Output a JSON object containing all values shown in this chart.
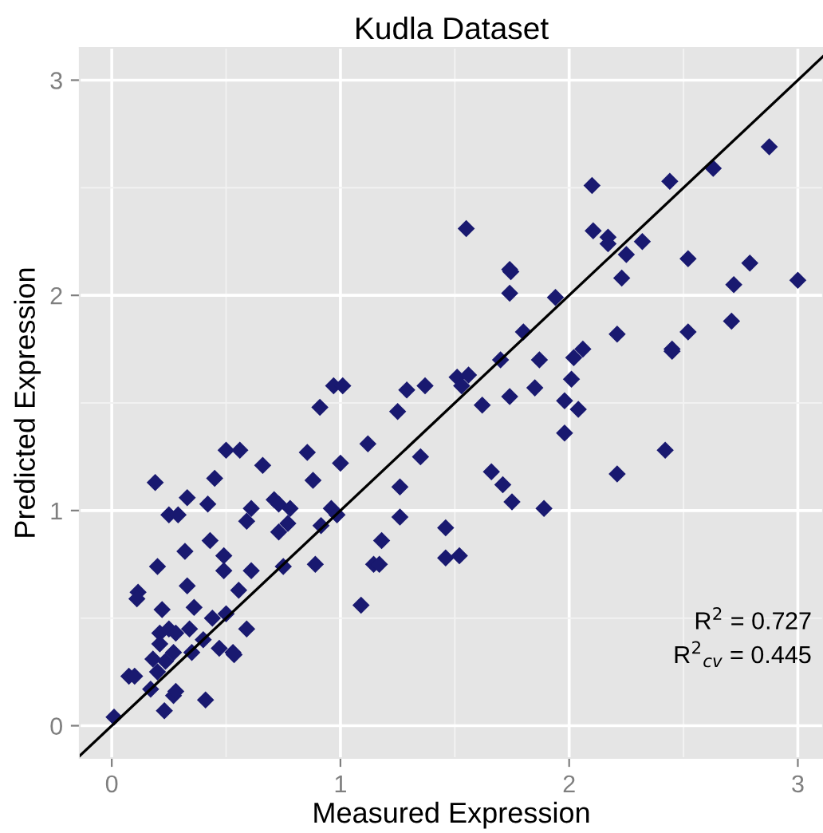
{
  "chart_data": {
    "type": "scatter",
    "title": "Kudla Dataset",
    "xlabel": "Measured Expression",
    "ylabel": "Predicted Expression",
    "xlim": [
      -0.14,
      3.11
    ],
    "ylim": [
      -0.15,
      3.15
    ],
    "xticks": [
      0,
      1,
      2,
      3
    ],
    "yticks": [
      0,
      1,
      2,
      3
    ],
    "grid": true,
    "annotations": [
      "R$^{2}$ = 0.727",
      "R$^{2}$$_{cv}$ = 0.445"
    ],
    "series": [
      {
        "marker": "diamond",
        "color": "#191970",
        "x": [
          0.91,
          0.5,
          0.56,
          0.855,
          1.0,
          0.66,
          0.45,
          0.19,
          0.88,
          0.33,
          0.42,
          0.71,
          0.73,
          0.78,
          0.61,
          0.25,
          0.29,
          0.59,
          0.77,
          0.73,
          0.96,
          0.985,
          0.915,
          0.43,
          0.32,
          0.49,
          0.2,
          0.49,
          0.61,
          0.75,
          0.89,
          0.115,
          0.11,
          0.33,
          0.555,
          0.22,
          0.36,
          0.44,
          0.5,
          0.59,
          0.21,
          0.25,
          0.28,
          0.34,
          0.21,
          0.4,
          0.18,
          0.235,
          0.27,
          0.35,
          0.47,
          0.53,
          0.535,
          0.2,
          0.075,
          0.1,
          0.17,
          0.27,
          0.28,
          0.41,
          0.23,
          0.01,
          1.74,
          1.94,
          1.8,
          2.21,
          2.06,
          2.02,
          1.87,
          1.7,
          0.97,
          1.01,
          1.51,
          1.56,
          1.53,
          1.29,
          1.37,
          1.85,
          2.01,
          1.74,
          1.62,
          1.98,
          2.04,
          1.25,
          1.98,
          1.12,
          1.35,
          2.21,
          1.66,
          1.71,
          1.26,
          1.75,
          1.89,
          1.26,
          1.46,
          1.18,
          1.145,
          1.17,
          1.46,
          1.52,
          1.09,
          2.1,
          2.44,
          2.875,
          2.63,
          1.55,
          2.105,
          2.17,
          2.17,
          2.32,
          2.25,
          2.52,
          2.79,
          1.74,
          1.745,
          2.23,
          2.72,
          3.0,
          2.71,
          2.52,
          2.45,
          2.45,
          2.42
        ],
        "values": [
          1.48,
          1.28,
          1.28,
          1.27,
          1.22,
          1.21,
          1.15,
          1.13,
          1.14,
          1.06,
          1.03,
          1.05,
          1.03,
          1.01,
          1.01,
          0.98,
          0.98,
          0.95,
          0.94,
          0.9,
          1.01,
          0.98,
          0.93,
          0.86,
          0.81,
          0.79,
          0.74,
          0.72,
          0.72,
          0.74,
          0.75,
          0.62,
          0.59,
          0.65,
          0.63,
          0.54,
          0.55,
          0.5,
          0.52,
          0.45,
          0.43,
          0.45,
          0.43,
          0.45,
          0.38,
          0.4,
          0.31,
          0.3,
          0.34,
          0.34,
          0.36,
          0.34,
          0.33,
          0.25,
          0.23,
          0.23,
          0.17,
          0.14,
          0.16,
          0.12,
          0.07,
          0.04,
          2.01,
          1.99,
          1.83,
          1.82,
          1.75,
          1.71,
          1.7,
          1.7,
          1.58,
          1.58,
          1.62,
          1.63,
          1.58,
          1.56,
          1.58,
          1.57,
          1.61,
          1.53,
          1.49,
          1.51,
          1.47,
          1.46,
          1.36,
          1.31,
          1.25,
          1.17,
          1.18,
          1.12,
          1.11,
          1.04,
          1.01,
          0.97,
          0.92,
          0.86,
          0.75,
          0.75,
          0.78,
          0.79,
          0.56,
          2.51,
          2.53,
          2.69,
          2.59,
          2.31,
          2.3,
          2.27,
          2.24,
          2.25,
          2.19,
          2.17,
          2.15,
          2.12,
          2.11,
          2.08,
          2.05,
          2.07,
          1.88,
          1.83,
          1.74,
          1.75,
          1.28
        ]
      },
      {
        "type": "line",
        "color": "#000000",
        "x": [
          -0.14,
          3.11
        ],
        "values": [
          -0.14,
          3.11
        ]
      }
    ]
  }
}
